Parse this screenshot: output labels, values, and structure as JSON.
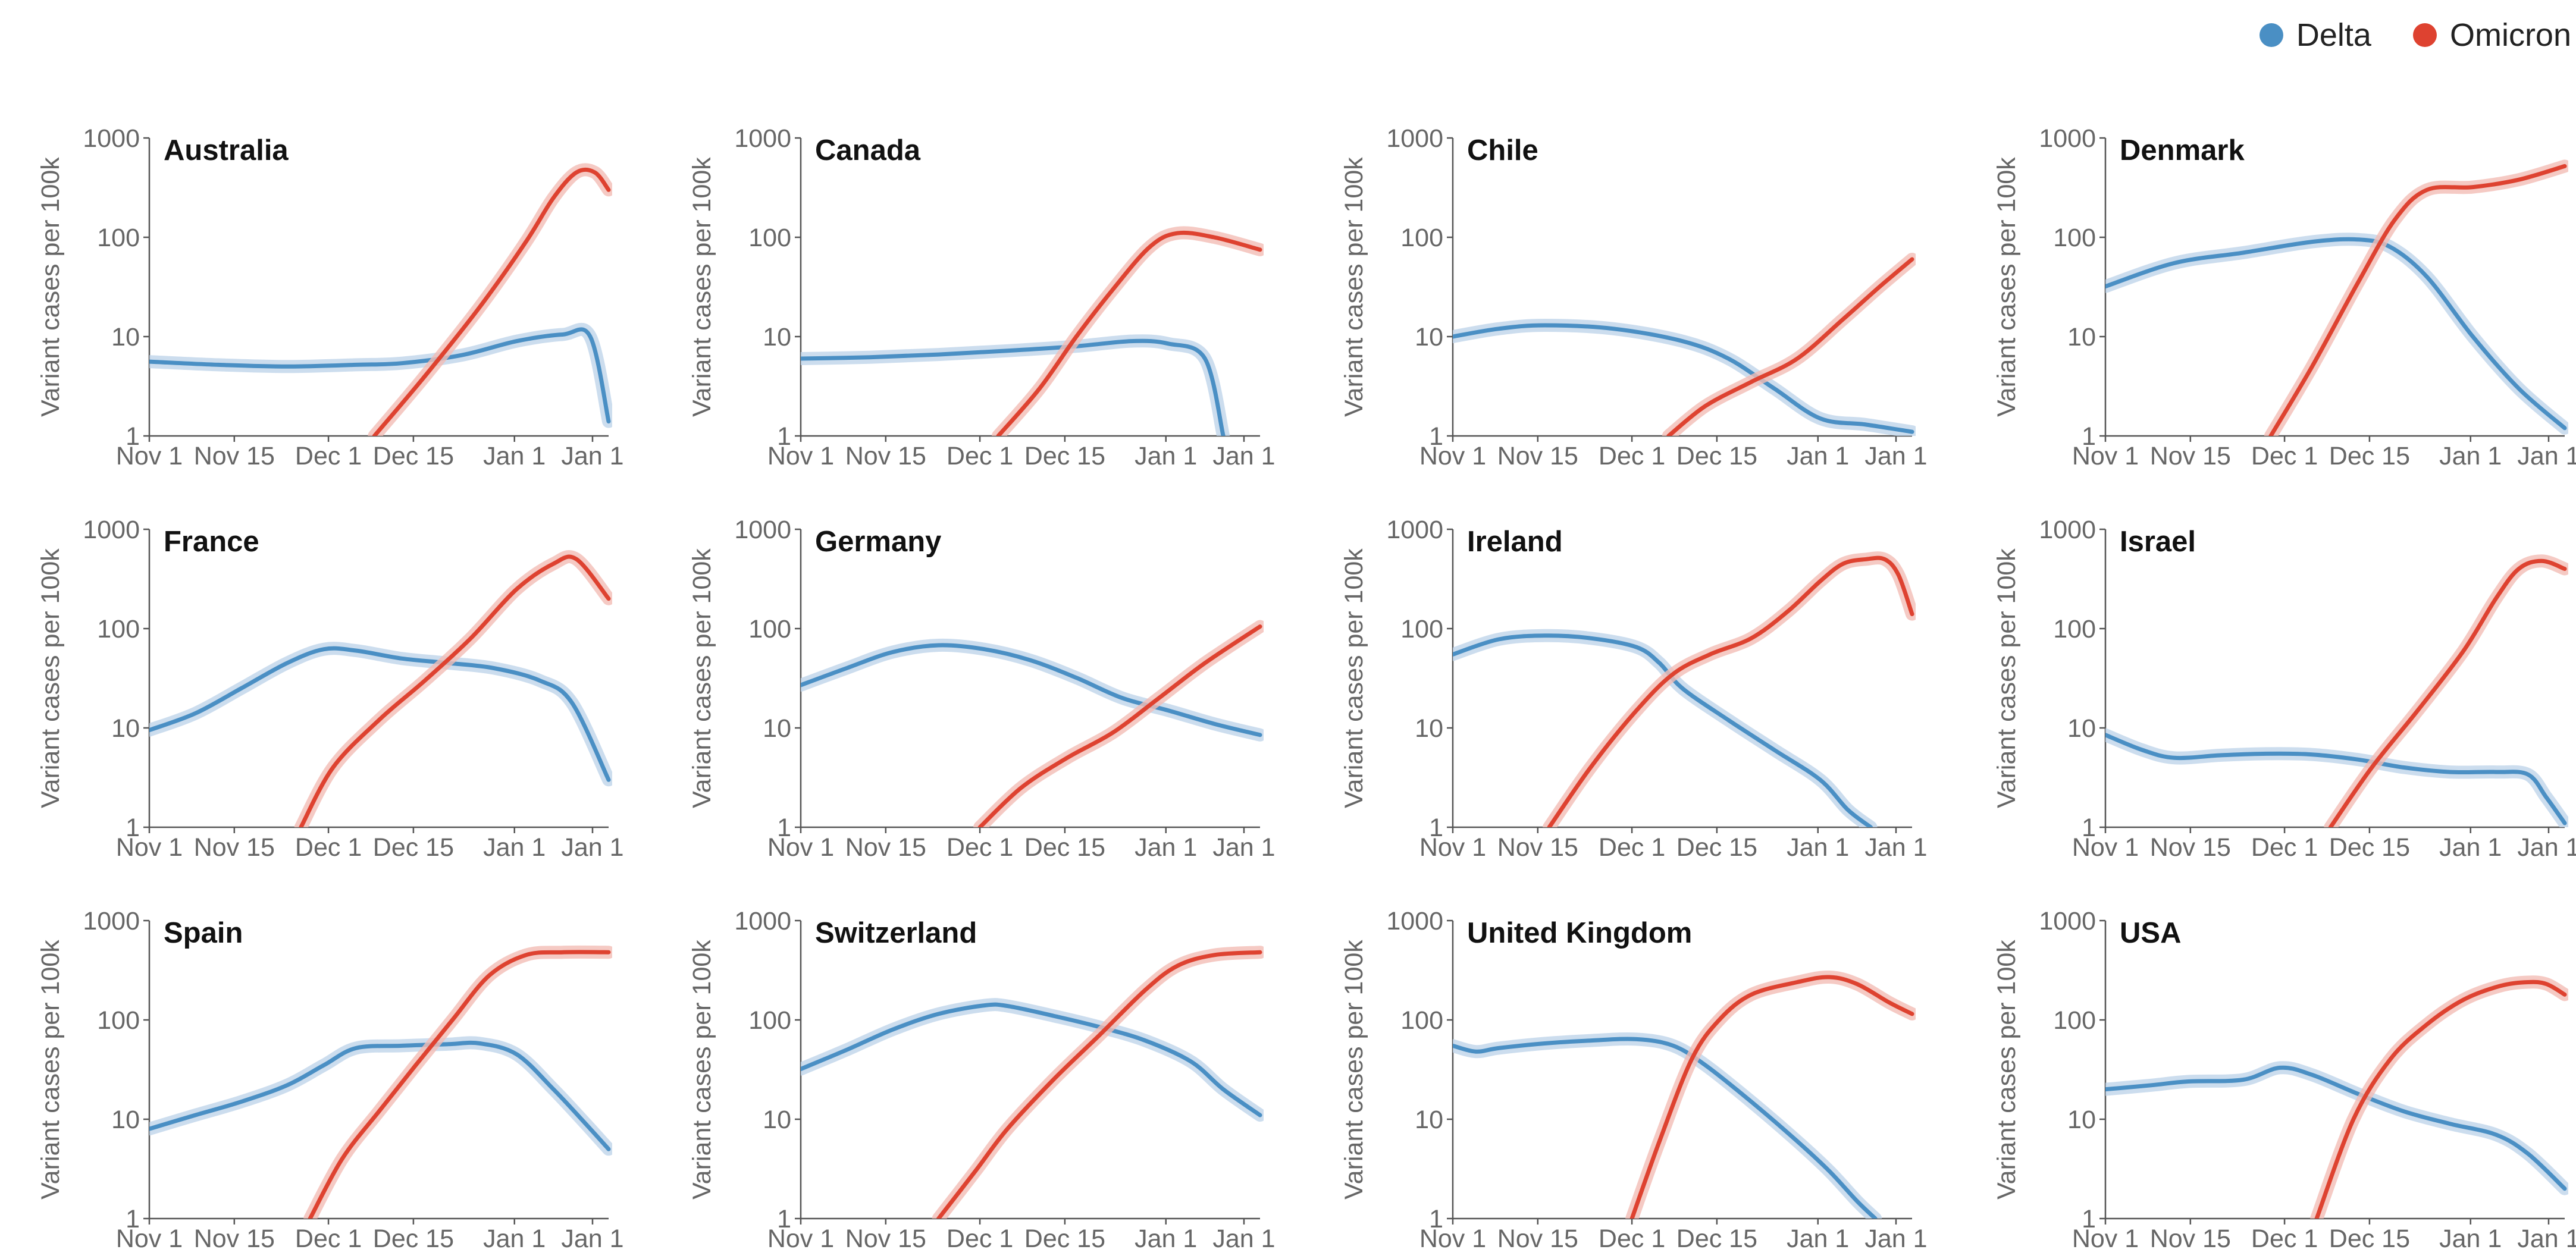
{
  "legend": [
    {
      "label": "Delta",
      "color": "#4a8fc4"
    },
    {
      "label": "Omicron",
      "color": "#de4230"
    }
  ],
  "colors": {
    "delta": "#4a8fc4",
    "omicron": "#de4230",
    "band_delta": "#bfd5ea",
    "band_omicron": "#f2bdb5"
  },
  "chart_data": [
    {
      "type": "line",
      "title": "Australia",
      "ylabel": "Variant cases per 100k",
      "yscale": "log",
      "ylim": [
        1,
        1000
      ],
      "yticks": [
        "1000",
        "100",
        "10",
        "1"
      ],
      "xticks": [
        "Nov 1",
        "Nov 15",
        "Dec 1",
        "Dec 15",
        "Jan 1",
        "Jan 1"
      ],
      "series": [
        {
          "name": "Delta",
          "x": [
            0.0,
            0.15,
            0.3,
            0.45,
            0.55,
            0.68,
            0.8,
            0.9,
            0.96,
            1.0
          ],
          "y": [
            5.6,
            5.2,
            5.0,
            5.2,
            5.4,
            6.5,
            9.0,
            10.5,
            10.0,
            1.4
          ]
        },
        {
          "name": "Omicron",
          "x": [
            0.49,
            0.6,
            0.72,
            0.82,
            0.88,
            0.93,
            0.97,
            1.0
          ],
          "y": [
            1.0,
            4.0,
            20,
            90,
            250,
            450,
            450,
            300
          ]
        }
      ]
    },
    {
      "type": "line",
      "title": "Canada",
      "ylabel": "Variant cases per 100k",
      "yscale": "log",
      "ylim": [
        1,
        1000
      ],
      "yticks": [
        "1000",
        "100",
        "10",
        "1"
      ],
      "xticks": [
        "Nov 1",
        "Nov 15",
        "Dec 1",
        "Dec 15",
        "Jan 1",
        "Jan 1"
      ],
      "series": [
        {
          "name": "Delta",
          "x": [
            0.0,
            0.15,
            0.3,
            0.45,
            0.6,
            0.72,
            0.8,
            0.88,
            0.92
          ],
          "y": [
            6.0,
            6.2,
            6.6,
            7.2,
            8.0,
            9.0,
            8.5,
            6.0,
            1.0
          ]
        },
        {
          "name": "Omicron",
          "x": [
            0.43,
            0.52,
            0.6,
            0.68,
            0.76,
            0.82,
            0.9,
            1.0
          ],
          "y": [
            1.0,
            3.0,
            10,
            30,
            80,
            110,
            100,
            75
          ]
        }
      ]
    },
    {
      "type": "line",
      "title": "Chile",
      "ylabel": "Variant cases per 100k",
      "yscale": "log",
      "ylim": [
        1,
        1000
      ],
      "yticks": [
        "1000",
        "100",
        "10",
        "1"
      ],
      "xticks": [
        "Nov 1",
        "Nov 15",
        "Dec 1",
        "Dec 15",
        "Jan 1",
        "Jan 1"
      ],
      "series": [
        {
          "name": "Delta",
          "x": [
            0.0,
            0.1,
            0.2,
            0.35,
            0.5,
            0.6,
            0.7,
            0.8,
            0.9,
            1.0
          ],
          "y": [
            10,
            12,
            13,
            12,
            9.0,
            6.0,
            3.0,
            1.5,
            1.3,
            1.1
          ]
        },
        {
          "name": "Omicron",
          "x": [
            0.47,
            0.55,
            0.65,
            0.75,
            0.85,
            0.93,
            1.0
          ],
          "y": [
            1.0,
            2.0,
            3.5,
            6.0,
            15,
            32,
            60
          ]
        }
      ]
    },
    {
      "type": "line",
      "title": "Denmark",
      "ylabel": "Variant cases per 100k",
      "yscale": "log",
      "ylim": [
        1,
        1000
      ],
      "yticks": [
        "1000",
        "100",
        "10",
        "1"
      ],
      "xticks": [
        "Nov 1",
        "Nov 15",
        "Dec 1",
        "Dec 15",
        "Jan 1",
        "Jan 1"
      ],
      "series": [
        {
          "name": "Delta",
          "x": [
            0.0,
            0.15,
            0.3,
            0.45,
            0.55,
            0.62,
            0.7,
            0.8,
            0.9,
            1.0
          ],
          "y": [
            32,
            55,
            70,
            90,
            95,
            80,
            40,
            10,
            3.0,
            1.2
          ]
        },
        {
          "name": "Omicron",
          "x": [
            0.36,
            0.45,
            0.55,
            0.63,
            0.7,
            0.8,
            0.9,
            1.0
          ],
          "y": [
            1.0,
            5.0,
            35,
            150,
            300,
            320,
            380,
            520
          ]
        }
      ]
    },
    {
      "type": "line",
      "title": "France",
      "ylabel": "Variant cases per 100k",
      "yscale": "log",
      "ylim": [
        1,
        1000
      ],
      "yticks": [
        "1000",
        "100",
        "10",
        "1"
      ],
      "xticks": [
        "Nov 1",
        "Nov 15",
        "Dec 1",
        "Dec 15",
        "Jan 1",
        "Jan 1"
      ],
      "series": [
        {
          "name": "Delta",
          "x": [
            0.0,
            0.1,
            0.2,
            0.3,
            0.38,
            0.45,
            0.55,
            0.65,
            0.75,
            0.85,
            0.92,
            1.0
          ],
          "y": [
            9.5,
            14,
            25,
            45,
            62,
            60,
            50,
            45,
            40,
            30,
            18,
            3.0
          ]
        },
        {
          "name": "Omicron",
          "x": [
            0.33,
            0.4,
            0.5,
            0.6,
            0.7,
            0.8,
            0.88,
            0.93,
            1.0
          ],
          "y": [
            1.0,
            4.0,
            12,
            30,
            80,
            250,
            450,
            500,
            200
          ]
        }
      ]
    },
    {
      "type": "line",
      "title": "Germany",
      "ylabel": "Variant cases per 100k",
      "yscale": "log",
      "ylim": [
        1,
        1000
      ],
      "yticks": [
        "1000",
        "100",
        "10",
        "1"
      ],
      "xticks": [
        "Nov 1",
        "Nov 15",
        "Dec 1",
        "Dec 15",
        "Jan 1",
        "Jan 1"
      ],
      "series": [
        {
          "name": "Delta",
          "x": [
            0.0,
            0.1,
            0.2,
            0.3,
            0.4,
            0.5,
            0.6,
            0.7,
            0.8,
            0.9,
            1.0
          ],
          "y": [
            27,
            40,
            58,
            68,
            62,
            48,
            32,
            20,
            15,
            11,
            8.5
          ]
        },
        {
          "name": "Omicron",
          "x": [
            0.39,
            0.48,
            0.58,
            0.68,
            0.78,
            0.88,
            1.0
          ],
          "y": [
            1.0,
            2.5,
            5.0,
            9.0,
            20,
            45,
            105
          ]
        }
      ]
    },
    {
      "type": "line",
      "title": "Ireland",
      "ylabel": "Variant cases per 100k",
      "yscale": "log",
      "ylim": [
        1,
        1000
      ],
      "yticks": [
        "1000",
        "100",
        "10",
        "1"
      ],
      "xticks": [
        "Nov 1",
        "Nov 15",
        "Dec 1",
        "Dec 15",
        "Jan 1",
        "Jan 1"
      ],
      "series": [
        {
          "name": "Delta",
          "x": [
            0.0,
            0.1,
            0.2,
            0.3,
            0.4,
            0.45,
            0.5,
            0.6,
            0.7,
            0.8,
            0.86,
            0.91
          ],
          "y": [
            55,
            78,
            85,
            80,
            65,
            45,
            25,
            12,
            6.0,
            3.0,
            1.5,
            1.0
          ]
        },
        {
          "name": "Omicron",
          "x": [
            0.21,
            0.3,
            0.4,
            0.48,
            0.56,
            0.65,
            0.73,
            0.8,
            0.85,
            0.9,
            0.94,
            0.97,
            1.0
          ],
          "y": [
            1.0,
            4.0,
            15,
            35,
            55,
            80,
            150,
            300,
            450,
            500,
            500,
            350,
            140
          ]
        }
      ]
    },
    {
      "type": "line",
      "title": "Israel",
      "ylabel": "Variant cases per 100k",
      "yscale": "log",
      "ylim": [
        1,
        1000
      ],
      "yticks": [
        "1000",
        "100",
        "10",
        "1"
      ],
      "xticks": [
        "Nov 1",
        "Nov 15",
        "Dec 1",
        "Dec 15",
        "Jan 1",
        "Jan 1"
      ],
      "series": [
        {
          "name": "Delta",
          "x": [
            0.0,
            0.08,
            0.15,
            0.25,
            0.35,
            0.45,
            0.55,
            0.65,
            0.75,
            0.85,
            0.92,
            0.96,
            1.0
          ],
          "y": [
            8.5,
            6.0,
            5.0,
            5.3,
            5.5,
            5.4,
            4.8,
            4.0,
            3.6,
            3.6,
            3.4,
            2.0,
            1.1
          ]
        },
        {
          "name": "Omicron",
          "x": [
            0.49,
            0.58,
            0.68,
            0.78,
            0.85,
            0.9,
            0.95,
            1.0
          ],
          "y": [
            1.0,
            4.0,
            15,
            60,
            200,
            400,
            480,
            400
          ]
        }
      ]
    },
    {
      "type": "line",
      "title": "Spain",
      "ylabel": "Variant cases per 100k",
      "yscale": "log",
      "ylim": [
        1,
        1000
      ],
      "yticks": [
        "1000",
        "100",
        "10",
        "1"
      ],
      "xticks": [
        "Nov 1",
        "Nov 15",
        "Dec 1",
        "Dec 15",
        "Jan 1",
        "Jan 1"
      ],
      "series": [
        {
          "name": "Delta",
          "x": [
            0.0,
            0.1,
            0.2,
            0.3,
            0.38,
            0.45,
            0.55,
            0.65,
            0.72,
            0.8,
            0.88,
            0.95,
            1.0
          ],
          "y": [
            8.0,
            11,
            15,
            22,
            35,
            52,
            55,
            57,
            58,
            45,
            20,
            9.0,
            5.0
          ]
        },
        {
          "name": "Omicron",
          "x": [
            0.35,
            0.42,
            0.5,
            0.58,
            0.66,
            0.74,
            0.82,
            0.9,
            1.0
          ],
          "y": [
            1.0,
            4.0,
            12,
            35,
            100,
            280,
            450,
            480,
            480
          ]
        }
      ]
    },
    {
      "type": "line",
      "title": "Switzerland",
      "ylabel": "Variant cases per 100k",
      "yscale": "log",
      "ylim": [
        1,
        1000
      ],
      "yticks": [
        "1000",
        "100",
        "10",
        "1"
      ],
      "xticks": [
        "Nov 1",
        "Nov 15",
        "Dec 1",
        "Dec 15",
        "Jan 1",
        "Jan 1"
      ],
      "series": [
        {
          "name": "Delta",
          "x": [
            0.0,
            0.1,
            0.2,
            0.3,
            0.4,
            0.45,
            0.55,
            0.65,
            0.75,
            0.85,
            0.92,
            1.0
          ],
          "y": [
            32,
            50,
            80,
            115,
            140,
            138,
            110,
            85,
            62,
            38,
            20,
            11
          ]
        },
        {
          "name": "Omicron",
          "x": [
            0.3,
            0.38,
            0.45,
            0.55,
            0.65,
            0.75,
            0.82,
            0.9,
            1.0
          ],
          "y": [
            1.0,
            3.0,
            8.0,
            25,
            70,
            200,
            350,
            450,
            480
          ]
        }
      ]
    },
    {
      "type": "line",
      "title": "United Kingdom",
      "ylabel": "Variant cases per 100k",
      "yscale": "log",
      "ylim": [
        1,
        1000
      ],
      "yticks": [
        "1000",
        "100",
        "10",
        "1"
      ],
      "xticks": [
        "Nov 1",
        "Nov 15",
        "Dec 1",
        "Dec 15",
        "Jan 1",
        "Jan 1"
      ],
      "series": [
        {
          "name": "Delta",
          "x": [
            0.0,
            0.05,
            0.1,
            0.2,
            0.3,
            0.4,
            0.48,
            0.55,
            0.65,
            0.75,
            0.82,
            0.88,
            0.92
          ],
          "y": [
            55,
            48,
            52,
            58,
            62,
            64,
            55,
            35,
            15,
            6.0,
            3.0,
            1.5,
            1.0
          ]
        },
        {
          "name": "Omicron",
          "x": [
            0.39,
            0.45,
            0.52,
            0.58,
            0.65,
            0.75,
            0.82,
            0.88,
            0.95,
            1.0
          ],
          "y": [
            1.0,
            6.0,
            40,
            100,
            180,
            240,
            270,
            230,
            150,
            115
          ]
        }
      ]
    },
    {
      "type": "line",
      "title": "USA",
      "ylabel": "Variant cases per 100k",
      "yscale": "log",
      "ylim": [
        1,
        1000
      ],
      "yticks": [
        "1000",
        "100",
        "10",
        "1"
      ],
      "xticks": [
        "Nov 1",
        "Nov 15",
        "Dec 1",
        "Dec 15",
        "Jan 1",
        "Jan 1"
      ],
      "series": [
        {
          "name": "Delta",
          "x": [
            0.0,
            0.1,
            0.18,
            0.3,
            0.38,
            0.45,
            0.55,
            0.65,
            0.75,
            0.85,
            0.92,
            1.0
          ],
          "y": [
            20,
            22,
            24,
            25,
            33,
            28,
            18,
            12,
            9.0,
            7.0,
            4.5,
            2.0
          ]
        },
        {
          "name": "Omicron",
          "x": [
            0.46,
            0.54,
            0.62,
            0.7,
            0.78,
            0.86,
            0.92,
            0.96,
            1.0
          ],
          "y": [
            1.0,
            10,
            40,
            90,
            160,
            220,
            240,
            230,
            180
          ]
        }
      ]
    }
  ]
}
